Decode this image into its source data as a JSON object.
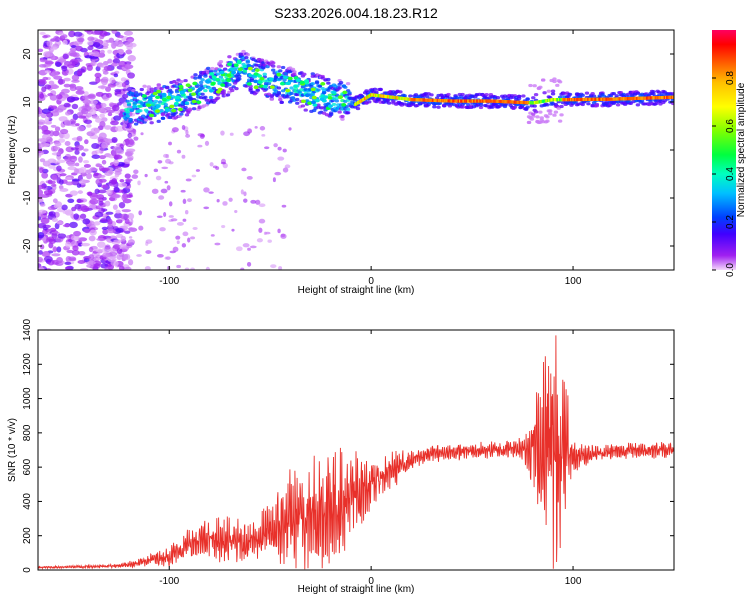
{
  "title": "S233.2026.004.18.23.R12",
  "chart_data": [
    {
      "type": "heatmap",
      "name": "spectrogram",
      "xlabel": "Height of straight line (km)",
      "ylabel": "Frequency (Hz)",
      "xlim": [
        -165,
        150
      ],
      "ylim": [
        -25,
        25
      ],
      "xticks": [
        -100,
        0,
        100
      ],
      "yticks": [
        -20,
        -10,
        0,
        10,
        20
      ],
      "ridge": [
        {
          "x": -120,
          "f": 9.0
        },
        {
          "x": -110,
          "f": 9.5
        },
        {
          "x": -100,
          "f": 10.0
        },
        {
          "x": -90,
          "f": 11.5
        },
        {
          "x": -80,
          "f": 13.5
        },
        {
          "x": -70,
          "f": 15.5
        },
        {
          "x": -65,
          "f": 17.0
        },
        {
          "x": -55,
          "f": 15.0
        },
        {
          "x": -45,
          "f": 14.0
        },
        {
          "x": -35,
          "f": 12.5
        },
        {
          "x": -25,
          "f": 11.5
        },
        {
          "x": -15,
          "f": 10.5
        },
        {
          "x": -8,
          "f": 9.5
        },
        {
          "x": 0,
          "f": 11.5
        },
        {
          "x": 10,
          "f": 11.0
        },
        {
          "x": 20,
          "f": 10.5
        },
        {
          "x": 40,
          "f": 10.2
        },
        {
          "x": 60,
          "f": 10.2
        },
        {
          "x": 80,
          "f": 9.8
        },
        {
          "x": 90,
          "f": 10.5
        },
        {
          "x": 100,
          "f": 10.5
        },
        {
          "x": 120,
          "f": 10.6
        },
        {
          "x": 150,
          "f": 11.0
        }
      ],
      "colorbar": {
        "label": "Normalized spectral amplitude",
        "ticks": [
          "0.0",
          "0.2",
          "0.4",
          "0.6",
          "0.8"
        ],
        "range": [
          0,
          1
        ]
      }
    },
    {
      "type": "line",
      "name": "snr",
      "xlabel": "Height of straight line (km)",
      "ylabel": "SNR (10 * v/v)",
      "xlim": [
        -165,
        150
      ],
      "ylim": [
        0,
        1400
      ],
      "xticks": [
        -100,
        0,
        100
      ],
      "yticks": [
        0,
        200,
        400,
        600,
        800,
        1000,
        1200,
        1400
      ],
      "color": "#e8302a",
      "series": [
        {
          "name": "envelope",
          "x": [
            -165,
            -140,
            -125,
            -115,
            -110,
            -100,
            -90,
            -80,
            -70,
            -60,
            -50,
            -40,
            -30,
            -20,
            -10,
            0,
            10,
            20,
            30,
            45,
            60,
            75,
            80,
            85,
            88,
            90,
            93,
            97,
            100,
            110,
            130,
            150
          ],
          "mid": [
            15,
            20,
            25,
            40,
            60,
            80,
            150,
            180,
            160,
            170,
            220,
            280,
            320,
            360,
            420,
            500,
            580,
            640,
            680,
            690,
            700,
            710,
            720,
            700,
            700,
            650,
            700,
            720,
            660,
            680,
            700,
            700
          ],
          "amp": [
            5,
            8,
            10,
            20,
            30,
            50,
            80,
            100,
            120,
            100,
            150,
            250,
            280,
            300,
            240,
            120,
            90,
            50,
            40,
            40,
            40,
            60,
            200,
            400,
            600,
            650,
            500,
            300,
            80,
            40,
            40,
            40
          ]
        }
      ]
    }
  ]
}
